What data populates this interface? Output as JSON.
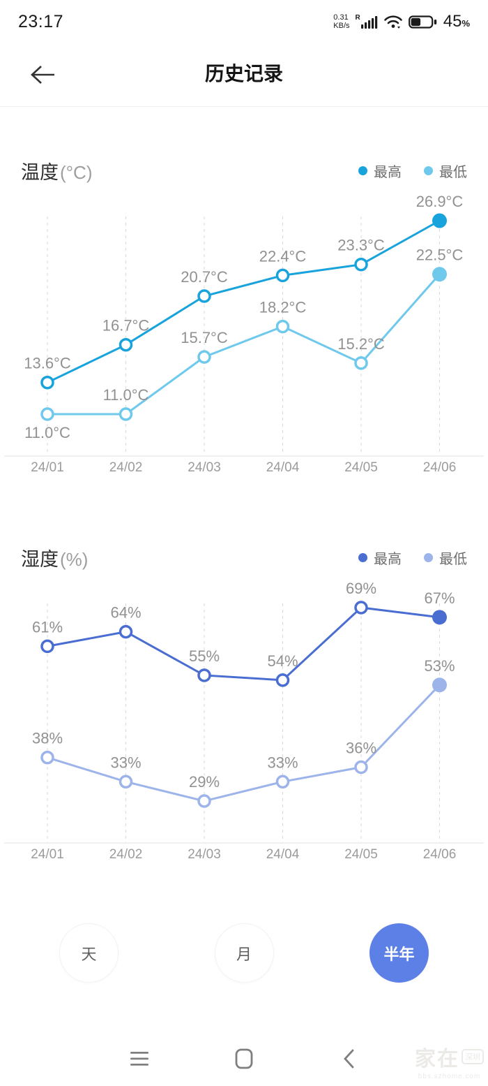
{
  "status_bar": {
    "time": "23:17",
    "net_speed_value": "0.31",
    "net_speed_unit": "KB/s",
    "network_type": "R",
    "battery_percent": "45",
    "battery_percent_symbol": "%",
    "battery_level": 0.45,
    "icons": [
      "signal-icon",
      "wifi-icon",
      "battery-icon"
    ]
  },
  "header": {
    "title": "历史记录",
    "back_icon": "arrow-left-icon"
  },
  "chart_data": [
    {
      "type": "line",
      "title": "温度",
      "unit": "(°C)",
      "categories": [
        "24/01",
        "24/02",
        "24/03",
        "24/04",
        "24/05",
        "24/06"
      ],
      "series": [
        {
          "key": "max",
          "name": "最高",
          "color": "#18a3dc",
          "values": [
            13.6,
            16.7,
            20.7,
            22.4,
            23.3,
            26.9
          ],
          "labels": [
            "13.6°C",
            "16.7°C",
            "20.7°C",
            "22.4°C",
            "23.3°C",
            "26.9°C"
          ]
        },
        {
          "key": "min",
          "name": "最低",
          "color": "#6ec9ec",
          "values": [
            11.0,
            11.0,
            15.7,
            18.2,
            15.2,
            22.5
          ],
          "labels": [
            "11.0°C",
            "11.0°C",
            "15.7°C",
            "18.2°C",
            "15.2°C",
            "22.5°C"
          ],
          "label_positions": [
            "below",
            "above",
            "above",
            "above",
            "above",
            "above"
          ]
        }
      ],
      "ylim": [
        11.0,
        26.9
      ],
      "legend_position": "top-right",
      "grid": "vertical-dashed"
    },
    {
      "type": "line",
      "title": "湿度",
      "unit": "(%)",
      "categories": [
        "24/01",
        "24/02",
        "24/03",
        "24/04",
        "24/05",
        "24/06"
      ],
      "series": [
        {
          "key": "max",
          "name": "最高",
          "color": "#4a6dd2",
          "values": [
            61,
            64,
            55,
            54,
            69,
            67
          ],
          "labels": [
            "61%",
            "64%",
            "55%",
            "54%",
            "69%",
            "67%"
          ]
        },
        {
          "key": "min",
          "name": "最低",
          "color": "#9cb4ea",
          "values": [
            38,
            33,
            29,
            33,
            36,
            53
          ],
          "labels": [
            "38%",
            "33%",
            "29%",
            "33%",
            "36%",
            "53%"
          ]
        }
      ],
      "ylim": [
        29,
        69
      ],
      "legend_position": "top-right",
      "grid": "vertical-dashed"
    }
  ],
  "period_selector": {
    "active_color": "#5c80e6",
    "options": [
      {
        "key": "day",
        "label": "天",
        "active": false
      },
      {
        "key": "month",
        "label": "月",
        "active": false
      },
      {
        "key": "half-year",
        "label": "半年",
        "active": true
      }
    ]
  },
  "nav_bar": {
    "items": [
      {
        "key": "menu",
        "icon": "menu-icon"
      },
      {
        "key": "home",
        "icon": "home-icon"
      },
      {
        "key": "back",
        "icon": "back-icon"
      }
    ]
  },
  "watermark": {
    "brand": "家在",
    "badge": "深圳",
    "domain": "bbs.szhome.com"
  }
}
